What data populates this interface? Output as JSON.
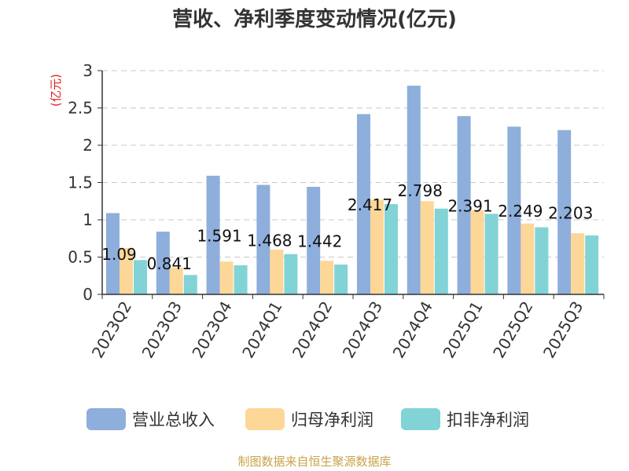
{
  "title": "营收、净利季度变动情况(亿元)",
  "unit_label": "(亿元)",
  "source": "制图数据来自恒生聚源数据库",
  "colors": {
    "revenue": "#8eaedc",
    "net_profit": "#fdd797",
    "deducted_profit": "#82d3d6",
    "grid": "#c8c8c8",
    "axis": "#333333"
  },
  "chart_data": {
    "type": "bar",
    "title": "营收、净利季度变动情况(亿元)",
    "ylabel": "(亿元)",
    "ylim": [
      0,
      3
    ],
    "yticks": [
      "0",
      "0.5",
      "1",
      "1.5",
      "2",
      "2.5",
      "3"
    ],
    "grid": true,
    "legend_position": "bottom",
    "categories": [
      "2023Q2",
      "2023Q3",
      "2023Q4",
      "2024Q1",
      "2024Q2",
      "2024Q3",
      "2024Q4",
      "2025Q1",
      "2025Q2",
      "2025Q3"
    ],
    "series": [
      {
        "name": "营业总收入",
        "values": [
          1.09,
          0.841,
          1.591,
          1.468,
          1.442,
          2.417,
          2.798,
          2.391,
          2.249,
          2.203
        ]
      },
      {
        "name": "归母净利润",
        "values": [
          0.62,
          0.36,
          0.44,
          0.6,
          0.45,
          1.27,
          1.25,
          1.13,
          0.95,
          0.82
        ]
      },
      {
        "name": "扣非净利润",
        "values": [
          0.46,
          0.26,
          0.39,
          0.54,
          0.4,
          1.21,
          1.15,
          1.08,
          0.9,
          0.79
        ]
      }
    ],
    "data_labels": [
      "1.09",
      "0.841",
      "1.591",
      "1.468",
      "1.442",
      "2.417",
      "2.798",
      "2.391",
      "2.249",
      "2.203"
    ]
  }
}
